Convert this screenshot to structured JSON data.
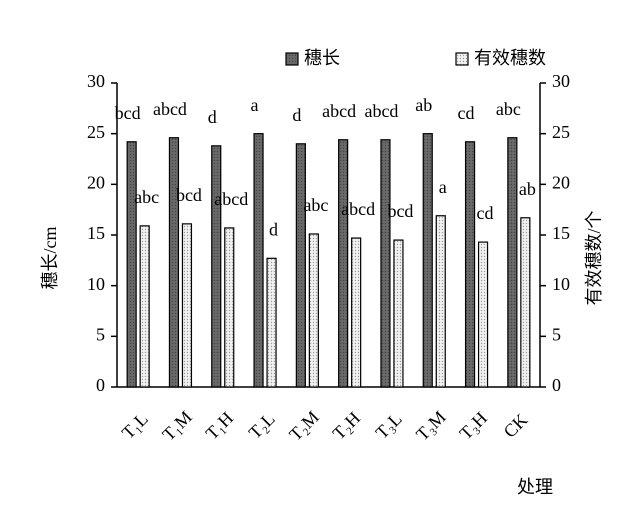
{
  "chart_data": {
    "type": "bar",
    "categories": [
      "T₁L",
      "T₁M",
      "T₁H",
      "T₂L",
      "T₂M",
      "T₂H",
      "T₃L",
      "T₃M",
      "T₃H",
      "CK"
    ],
    "series": [
      {
        "name": "穗长",
        "color": "#6a6a6a",
        "values": [
          24.2,
          24.6,
          23.8,
          25.0,
          24.0,
          24.4,
          24.4,
          25.0,
          24.2,
          24.6
        ],
        "labels": [
          "bcd",
          "abcd",
          "d",
          "a",
          "d",
          "abcd",
          "abcd",
          "ab",
          "cd",
          "abc"
        ]
      },
      {
        "name": "有效穗数",
        "color": "#f2f2f2",
        "axis": "y2",
        "values": [
          15.9,
          16.1,
          15.7,
          12.7,
          15.1,
          14.7,
          14.5,
          16.9,
          14.3,
          16.7
        ],
        "labels": [
          "abc",
          "bcd",
          "abcd",
          "d",
          "abc",
          "abcd",
          "bcd",
          "a",
          "cd",
          "ab"
        ]
      }
    ],
    "ylabel": "穗长/cm",
    "y2label": "有效穗数/个",
    "xlabel": "处理",
    "ylim": [
      0,
      30
    ],
    "yticks": [
      0,
      5,
      10,
      15,
      20,
      25,
      30
    ],
    "y2lim": [
      0,
      30
    ],
    "y2ticks": [
      0,
      5,
      10,
      15,
      20,
      25,
      30
    ]
  }
}
